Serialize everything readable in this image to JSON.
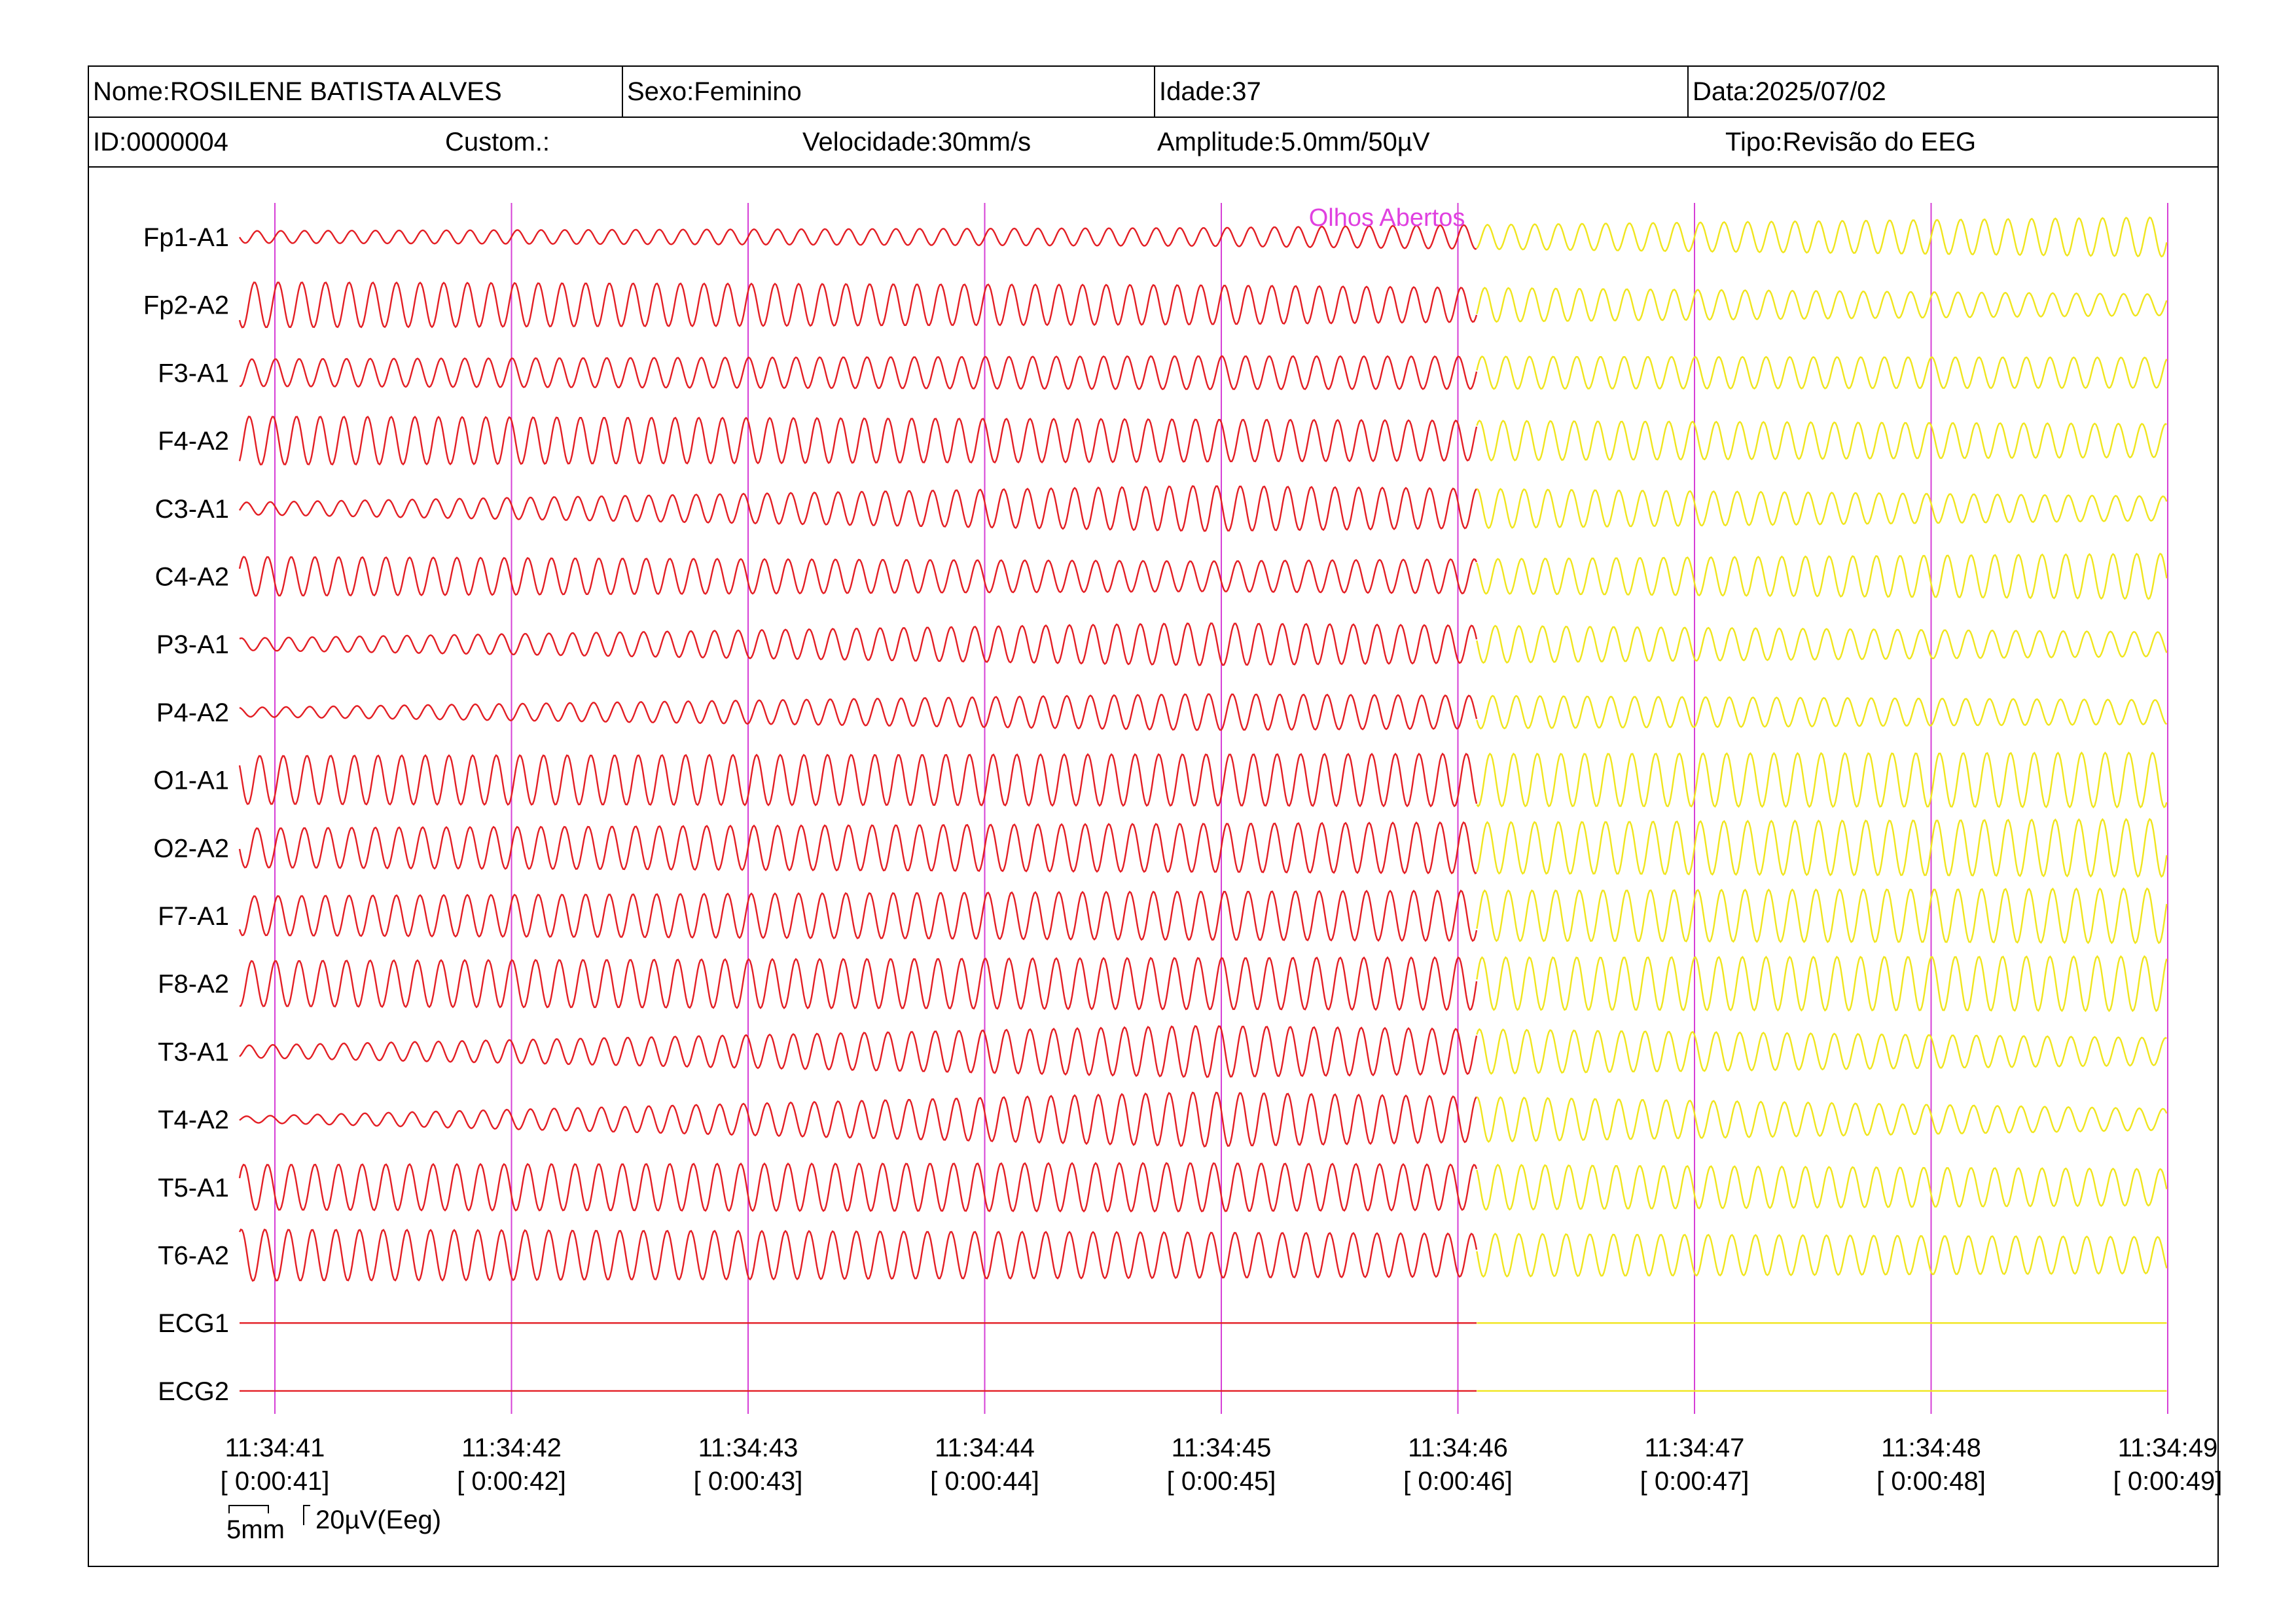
{
  "header": {
    "name": "Nome:ROSILENE BATISTA ALVES",
    "sex": "Sexo:Feminino",
    "age": "Idade:37",
    "date": "Data:2025/07/02",
    "id": "ID:0000004",
    "custom": "Custom.:",
    "speed": "Velocidade:30mm/s",
    "amplitude": "Amplitude:5.0mm/50µV",
    "type": "Tipo:Revisão do EEG"
  },
  "chart_data": {
    "type": "line",
    "title": "",
    "channels": [
      "Fp1-A1",
      "Fp2-A2",
      "F3-A1",
      "F4-A2",
      "C3-A1",
      "C4-A2",
      "P3-A1",
      "P4-A2",
      "O1-A1",
      "O2-A2",
      "F7-A1",
      "F8-A2",
      "T3-A1",
      "T4-A2",
      "T5-A1",
      "T6-A2",
      "ECG1",
      "ECG2"
    ],
    "time_ticks": [
      {
        "clock": "11:34:41",
        "elapsed": "[ 0:00:41]"
      },
      {
        "clock": "11:34:42",
        "elapsed": "[ 0:00:42]"
      },
      {
        "clock": "11:34:43",
        "elapsed": "[ 0:00:43]"
      },
      {
        "clock": "11:34:44",
        "elapsed": "[ 0:00:44]"
      },
      {
        "clock": "11:34:45",
        "elapsed": "[ 0:00:45]"
      },
      {
        "clock": "11:34:46",
        "elapsed": "[ 0:00:46]"
      },
      {
        "clock": "11:34:47",
        "elapsed": "[ 0:00:47]"
      },
      {
        "clock": "11:34:48",
        "elapsed": "[ 0:00:48]"
      },
      {
        "clock": "11:34:49",
        "elapsed": "[ 0:00:49]"
      }
    ],
    "time_range_s": [
      40.85,
      49.0
    ],
    "segment_split_s": 46.08,
    "segment_colors": [
      "#e31e24",
      "#f0e51e"
    ],
    "grid_color": "#d63fd6",
    "annotation": {
      "text": "Olhos Abertos",
      "time_s": 45.7,
      "color": "#e040e0"
    },
    "frequency_hz": 10,
    "amplitude_uv": [
      [
        8,
        12,
        26
      ],
      [
        30,
        26,
        14
      ],
      [
        18,
        22,
        20
      ],
      [
        32,
        28,
        22
      ],
      [
        8,
        30,
        16
      ],
      [
        26,
        20,
        30
      ],
      [
        8,
        28,
        16
      ],
      [
        6,
        24,
        16
      ],
      [
        32,
        34,
        36
      ],
      [
        26,
        32,
        38
      ],
      [
        26,
        32,
        36
      ],
      [
        30,
        34,
        36
      ],
      [
        8,
        34,
        18
      ],
      [
        4,
        36,
        14
      ],
      [
        30,
        32,
        24
      ],
      [
        34,
        30,
        24
      ],
      [
        0,
        0,
        0
      ],
      [
        0,
        0,
        0
      ]
    ],
    "scale_bar": {
      "time_label": "5mm",
      "amp_label": "20µV(Eeg)"
    }
  }
}
